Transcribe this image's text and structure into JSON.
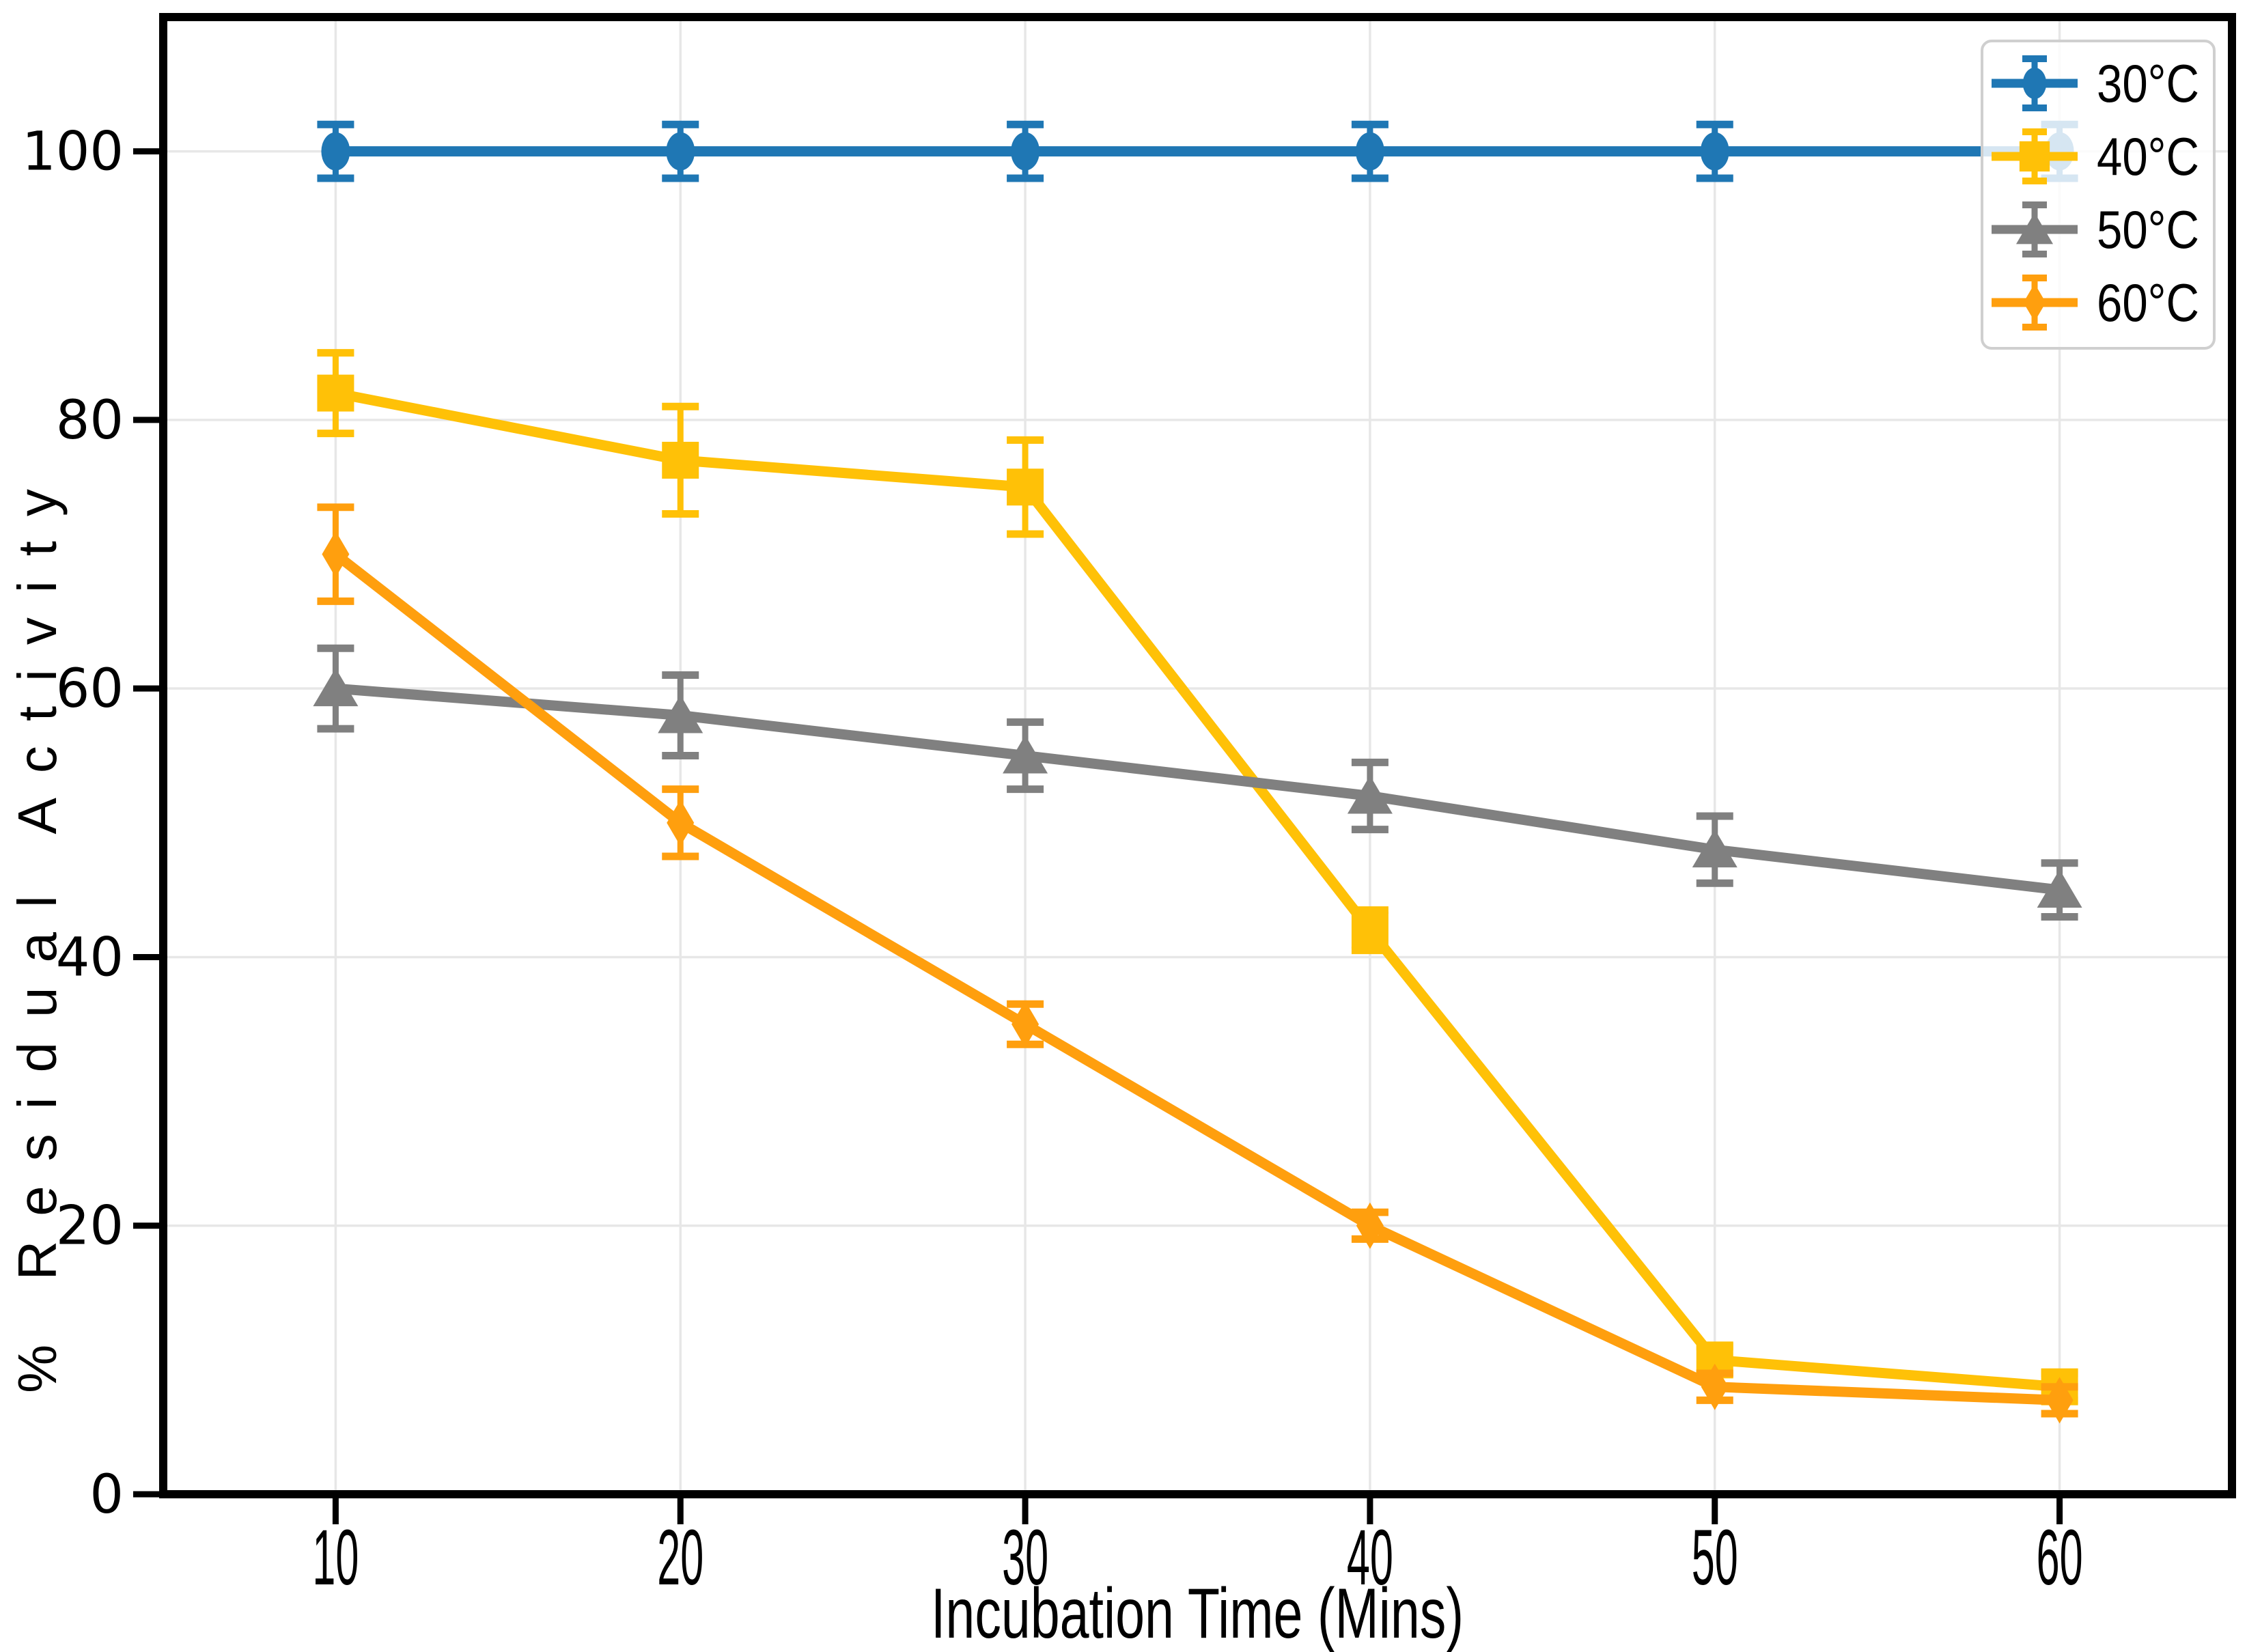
{
  "chart_data": {
    "type": "line",
    "title": "",
    "xlabel": "Incubation Time (Mins)",
    "ylabel": "% Residual Activity",
    "x": [
      10,
      20,
      30,
      40,
      50,
      60
    ],
    "xticks": [
      10,
      20,
      30,
      40,
      50,
      60
    ],
    "yticks": [
      0,
      20,
      40,
      60,
      80,
      100
    ],
    "xlim": [
      5,
      65
    ],
    "ylim": [
      0,
      110
    ],
    "grid": true,
    "legend_position": "upper right",
    "series": [
      {
        "name": "30°C",
        "marker": "circle",
        "color": "#1f77b4",
        "values": [
          100,
          100,
          100,
          100,
          100,
          100
        ],
        "errors": [
          2,
          2,
          2,
          2,
          2,
          2
        ]
      },
      {
        "name": "40°C",
        "marker": "square",
        "color": "#ffc107",
        "values": [
          82,
          77,
          75,
          42,
          10,
          8
        ],
        "errors": [
          3,
          4,
          3.5,
          1.5,
          1,
          1
        ]
      },
      {
        "name": "50°C",
        "marker": "triangle",
        "color": "#808080",
        "values": [
          60,
          58,
          55,
          52,
          48,
          45
        ],
        "errors": [
          3,
          3,
          2.5,
          2.5,
          2.5,
          2
        ]
      },
      {
        "name": "60°C",
        "marker": "diamond",
        "color": "#ff9f0e",
        "values": [
          70,
          50,
          35,
          20,
          8,
          7
        ],
        "errors": [
          3.5,
          2.5,
          1.5,
          1,
          1,
          1
        ]
      }
    ],
    "gridline_color": "#e7e7e7",
    "axis_color": "#000000",
    "background": "#ffffff"
  }
}
